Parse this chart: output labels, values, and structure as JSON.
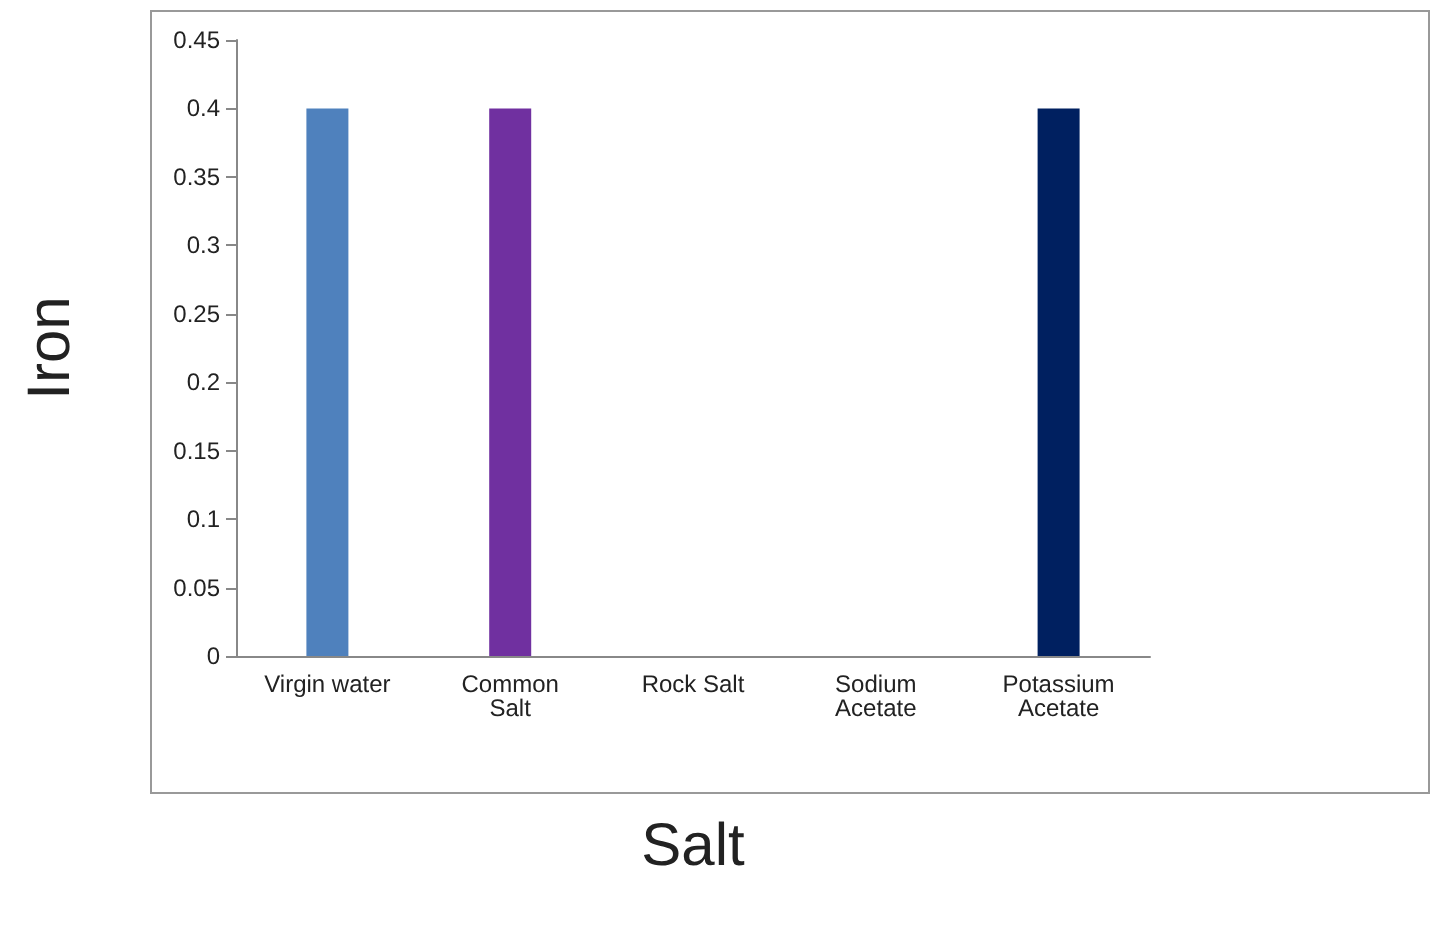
{
  "chart_data": {
    "type": "bar",
    "xlabel": "Salt",
    "ylabel": "Iron",
    "categories": [
      "Virgin water",
      "Common\nSalt",
      "Rock Salt",
      "Sodium\nAcetate",
      "Potassium\nAcetate"
    ],
    "values": [
      0.4,
      0.4,
      0,
      0,
      0.4
    ],
    "colors": [
      "#4f81bd",
      "#7030a0",
      "#4f81bd",
      "#4f81bd",
      "#002060"
    ],
    "ylim": [
      0,
      0.45
    ],
    "yticks": [
      0,
      0.05,
      0.1,
      0.15,
      0.2,
      0.25,
      0.3,
      0.35,
      0.4,
      0.45
    ]
  }
}
